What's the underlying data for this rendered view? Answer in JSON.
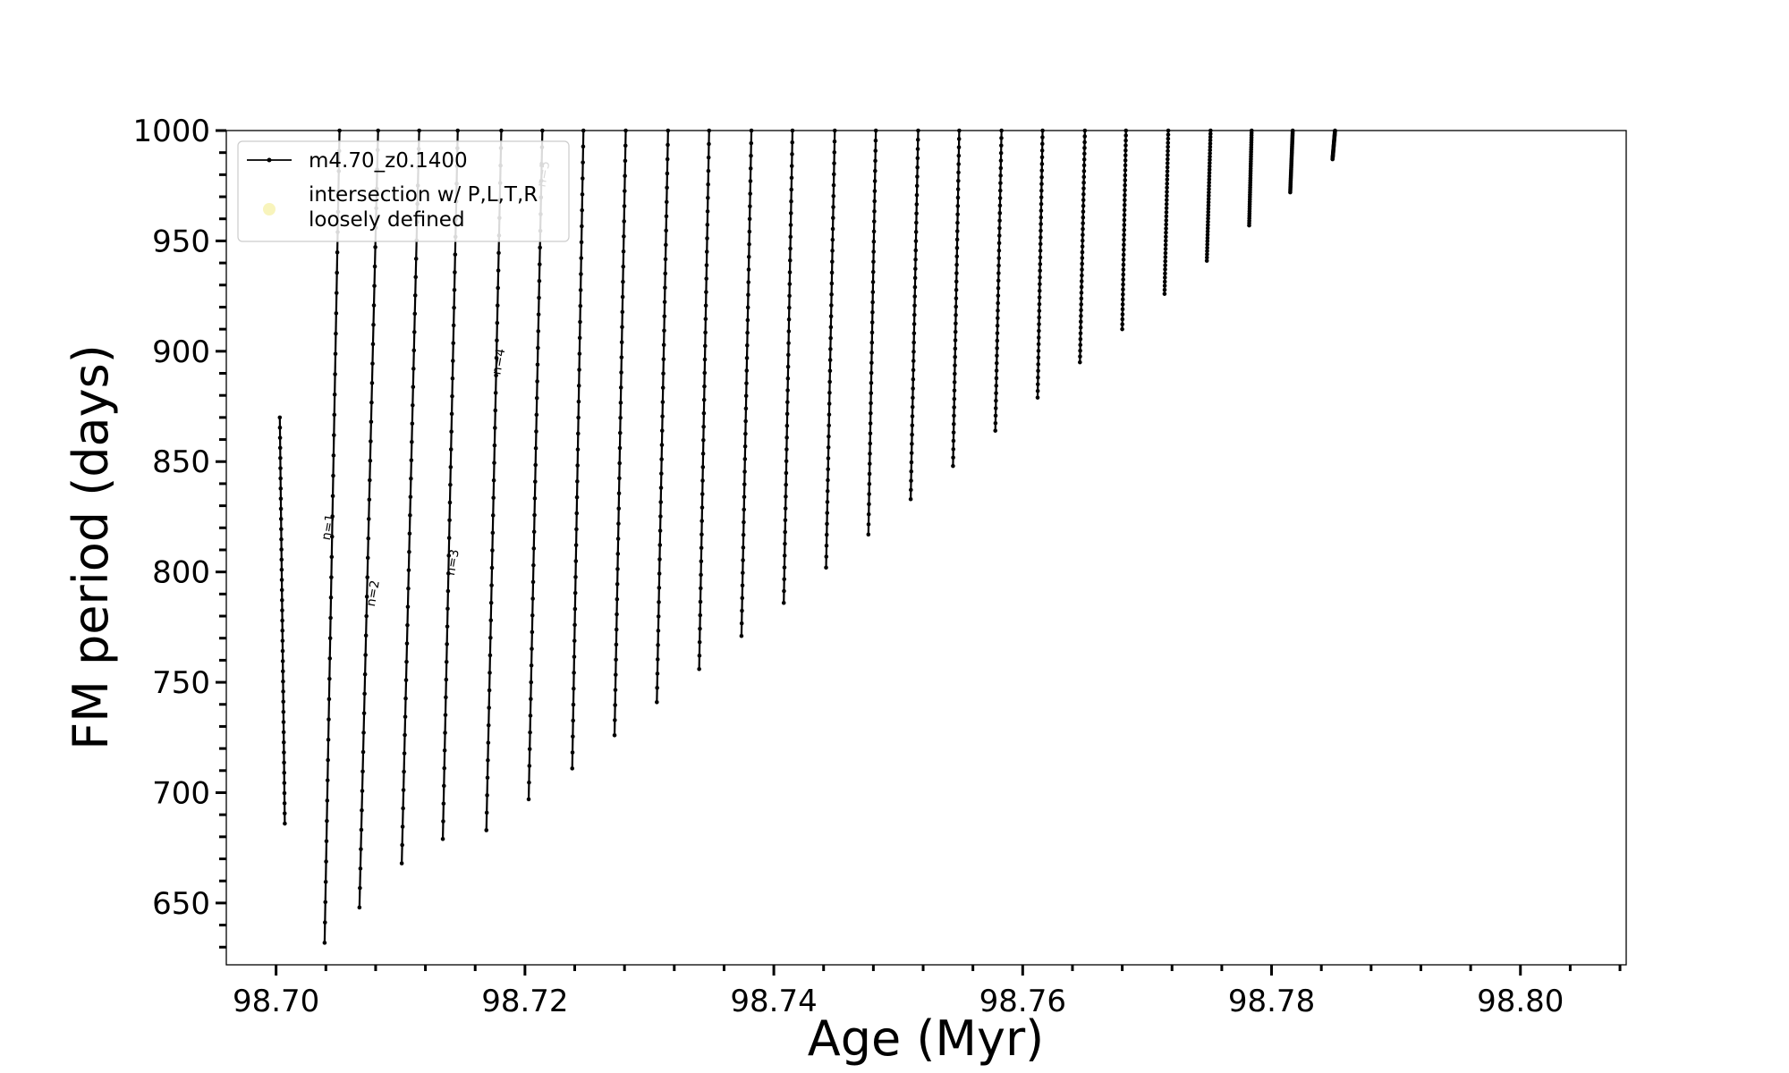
{
  "chart_data": {
    "type": "line",
    "xlabel": "Age (Myr)",
    "ylabel": "FM period (days)",
    "xlim": [
      98.696,
      98.8085
    ],
    "ylim": [
      622,
      1000
    ],
    "xticks": [
      98.7,
      98.72,
      98.74,
      98.76,
      98.78,
      98.8
    ],
    "xtick_labels": [
      "98.70",
      "98.72",
      "98.74",
      "98.76",
      "98.78",
      "98.80"
    ],
    "yticks": [
      650,
      700,
      750,
      800,
      850,
      900,
      950,
      1000
    ],
    "ytick_labels": [
      "650",
      "700",
      "750",
      "800",
      "850",
      "900",
      "950",
      "1000"
    ],
    "grid": false,
    "legend_position": "top-left",
    "series": [
      {
        "name": "m4.70_z0.1400",
        "color": "#000000",
        "marker": "dot",
        "pulses": [
          [
            98.7003,
            870,
            98.7007,
            686
          ],
          [
            98.7039,
            632,
            98.7051,
            1000
          ],
          [
            98.7067,
            648,
            98.7082,
            1000
          ],
          [
            98.7101,
            668,
            98.7115,
            1000
          ],
          [
            98.7134,
            679,
            98.7146,
            1000
          ],
          [
            98.7169,
            683,
            98.7181,
            1000
          ],
          [
            98.7203,
            697,
            98.7214,
            1000
          ],
          [
            98.7238,
            711,
            98.7247,
            1000
          ],
          [
            98.7272,
            726,
            98.7281,
            1000
          ],
          [
            98.7306,
            741,
            98.7315,
            1000
          ],
          [
            98.734,
            756,
            98.7348,
            1000
          ],
          [
            98.7374,
            771,
            98.7382,
            1000
          ],
          [
            98.7408,
            786,
            98.7415,
            1000
          ],
          [
            98.7442,
            802,
            98.7449,
            1000
          ],
          [
            98.7476,
            817,
            98.7482,
            1000
          ],
          [
            98.751,
            833,
            98.7516,
            1000
          ],
          [
            98.7544,
            848,
            98.7549,
            1000
          ],
          [
            98.7578,
            864,
            98.7583,
            1000
          ],
          [
            98.7612,
            879,
            98.7616,
            1000
          ],
          [
            98.7646,
            895,
            98.765,
            1000
          ],
          [
            98.768,
            910,
            98.7683,
            1000
          ],
          [
            98.7714,
            926,
            98.7717,
            1000
          ],
          [
            98.7748,
            941,
            98.7751,
            1000
          ],
          [
            98.7782,
            957,
            98.7784,
            1000
          ],
          [
            98.7815,
            972,
            98.7817,
            1000
          ],
          [
            98.7849,
            987,
            98.7851,
            1000
          ]
        ]
      },
      {
        "name": "intersection w/ P,L,T,R\nloosely defined",
        "color": "#f5f0a0",
        "marker": "circle"
      }
    ],
    "annotations": [
      {
        "text": "n=1",
        "x": 98.7045,
        "y": 820
      },
      {
        "text": "n=2",
        "x": 98.7081,
        "y": 790
      },
      {
        "text": "n=3",
        "x": 98.7145,
        "y": 804
      },
      {
        "text": "n=4",
        "x": 98.7182,
        "y": 895
      },
      {
        "text": "n=5",
        "x": 98.7218,
        "y": 980
      }
    ]
  }
}
